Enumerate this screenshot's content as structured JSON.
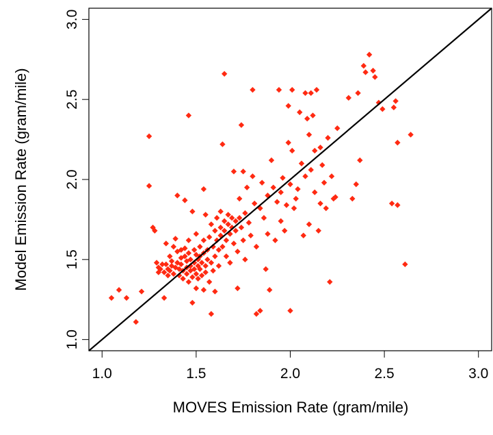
{
  "chart_data": {
    "type": "scatter",
    "title": "",
    "xlabel": "MOVES Emission Rate (gram/mile)",
    "ylabel": "Model Emission Rate (gram/mile)",
    "xlim": [
      0.93,
      3.07
    ],
    "ylim": [
      0.93,
      3.07
    ],
    "x_ticks": [
      "1.0",
      "1.5",
      "2.0",
      "2.5",
      "3.0"
    ],
    "y_ticks": [
      "1.0",
      "1.5",
      "2.0",
      "2.5",
      "3.0"
    ],
    "grid": false,
    "legend": "none",
    "reference_line": {
      "label": "",
      "slope": 1,
      "intercept": 0,
      "color": "#000000"
    },
    "marker": {
      "shape": "diamond",
      "color": "#ff2a12"
    },
    "points": [
      [
        1.05,
        1.26
      ],
      [
        1.09,
        1.31
      ],
      [
        1.13,
        1.26
      ],
      [
        1.18,
        1.11
      ],
      [
        1.21,
        1.3
      ],
      [
        1.25,
        2.27
      ],
      [
        1.25,
        1.96
      ],
      [
        1.27,
        1.7
      ],
      [
        1.28,
        1.68
      ],
      [
        1.29,
        1.48
      ],
      [
        1.3,
        1.45
      ],
      [
        1.3,
        1.42
      ],
      [
        1.31,
        1.44
      ],
      [
        1.32,
        1.47
      ],
      [
        1.33,
        1.26
      ],
      [
        1.33,
        1.42
      ],
      [
        1.34,
        1.6
      ],
      [
        1.34,
        1.47
      ],
      [
        1.35,
        1.44
      ],
      [
        1.35,
        1.4
      ],
      [
        1.36,
        1.52
      ],
      [
        1.36,
        1.43
      ],
      [
        1.37,
        1.49
      ],
      [
        1.37,
        1.46
      ],
      [
        1.38,
        1.41
      ],
      [
        1.38,
        1.58
      ],
      [
        1.39,
        1.63
      ],
      [
        1.39,
        1.45
      ],
      [
        1.4,
        1.9
      ],
      [
        1.4,
        1.55
      ],
      [
        1.4,
        1.48
      ],
      [
        1.41,
        1.44
      ],
      [
        1.41,
        1.4
      ],
      [
        1.42,
        1.56
      ],
      [
        1.42,
        1.51
      ],
      [
        1.42,
        1.47
      ],
      [
        1.43,
        1.43
      ],
      [
        1.43,
        1.38
      ],
      [
        1.44,
        1.87
      ],
      [
        1.44,
        1.57
      ],
      [
        1.44,
        1.52
      ],
      [
        1.45,
        1.49
      ],
      [
        1.45,
        1.45
      ],
      [
        1.45,
        1.41
      ],
      [
        1.46,
        2.4
      ],
      [
        1.46,
        1.62
      ],
      [
        1.46,
        1.54
      ],
      [
        1.46,
        1.36
      ],
      [
        1.47,
        1.5
      ],
      [
        1.47,
        1.46
      ],
      [
        1.47,
        1.43
      ],
      [
        1.48,
        1.23
      ],
      [
        1.48,
        1.39
      ],
      [
        1.48,
        1.8
      ],
      [
        1.49,
        1.56
      ],
      [
        1.49,
        1.48
      ],
      [
        1.49,
        1.44
      ],
      [
        1.5,
        1.66
      ],
      [
        1.5,
        1.53
      ],
      [
        1.5,
        1.41
      ],
      [
        1.5,
        1.32
      ],
      [
        1.51,
        1.5
      ],
      [
        1.51,
        1.46
      ],
      [
        1.51,
        1.38
      ],
      [
        1.52,
        1.58
      ],
      [
        1.52,
        1.52
      ],
      [
        1.52,
        1.44
      ],
      [
        1.53,
        1.48
      ],
      [
        1.53,
        1.4
      ],
      [
        1.54,
        1.94
      ],
      [
        1.54,
        1.62
      ],
      [
        1.54,
        1.54
      ],
      [
        1.54,
        1.31
      ],
      [
        1.55,
        1.78
      ],
      [
        1.55,
        1.46
      ],
      [
        1.55,
        1.42
      ],
      [
        1.56,
        1.56
      ],
      [
        1.56,
        1.5
      ],
      [
        1.57,
        1.64
      ],
      [
        1.57,
        1.36
      ],
      [
        1.58,
        1.16
      ],
      [
        1.58,
        1.72
      ],
      [
        1.58,
        1.48
      ],
      [
        1.59,
        1.58
      ],
      [
        1.59,
        1.43
      ],
      [
        1.6,
        1.68
      ],
      [
        1.6,
        1.52
      ],
      [
        1.6,
        1.3
      ],
      [
        1.61,
        1.76
      ],
      [
        1.61,
        1.62
      ],
      [
        1.62,
        1.56
      ],
      [
        1.62,
        1.46
      ],
      [
        1.63,
        1.8
      ],
      [
        1.63,
        1.7
      ],
      [
        1.63,
        1.65
      ],
      [
        1.64,
        2.22
      ],
      [
        1.64,
        1.58
      ],
      [
        1.65,
        2.66
      ],
      [
        1.65,
        1.74
      ],
      [
        1.65,
        1.68
      ],
      [
        1.66,
        1.62
      ],
      [
        1.66,
        1.52
      ],
      [
        1.67,
        1.78
      ],
      [
        1.67,
        1.72
      ],
      [
        1.68,
        1.66
      ],
      [
        1.68,
        1.48
      ],
      [
        1.69,
        1.76
      ],
      [
        1.69,
        1.7
      ],
      [
        1.7,
        2.05
      ],
      [
        1.7,
        1.6
      ],
      [
        1.71,
        1.74
      ],
      [
        1.71,
        1.68
      ],
      [
        1.72,
        1.32
      ],
      [
        1.72,
        1.55
      ],
      [
        1.73,
        1.88
      ],
      [
        1.73,
        1.76
      ],
      [
        1.74,
        2.34
      ],
      [
        1.74,
        1.7
      ],
      [
        1.75,
        1.62
      ],
      [
        1.75,
        2.05
      ],
      [
        1.76,
        1.5
      ],
      [
        1.76,
        1.79
      ],
      [
        1.77,
        1.95
      ],
      [
        1.78,
        1.73
      ],
      [
        1.79,
        1.65
      ],
      [
        1.8,
        2.56
      ],
      [
        1.8,
        2.02
      ],
      [
        1.81,
        1.85
      ],
      [
        1.82,
        1.58
      ],
      [
        1.82,
        1.16
      ],
      [
        1.84,
        1.82
      ],
      [
        1.84,
        1.18
      ],
      [
        1.85,
        1.98
      ],
      [
        1.86,
        1.76
      ],
      [
        1.87,
        1.44
      ],
      [
        1.88,
        1.9
      ],
      [
        1.88,
        1.66
      ],
      [
        1.89,
        1.31
      ],
      [
        1.9,
        2.12
      ],
      [
        1.91,
        1.95
      ],
      [
        1.92,
        1.62
      ],
      [
        1.93,
        1.86
      ],
      [
        1.94,
        2.56
      ],
      [
        1.95,
        1.92
      ],
      [
        1.95,
        1.74
      ],
      [
        1.96,
        2.01
      ],
      [
        1.97,
        1.68
      ],
      [
        1.98,
        1.84
      ],
      [
        1.99,
        2.46
      ],
      [
        1.99,
        2.23
      ],
      [
        2.0,
        1.97
      ],
      [
        2.0,
        1.18
      ],
      [
        2.01,
        2.56
      ],
      [
        2.01,
        2.18
      ],
      [
        2.02,
        1.82
      ],
      [
        2.03,
        1.88
      ],
      [
        2.04,
        1.94
      ],
      [
        2.05,
        2.42
      ],
      [
        2.06,
        2.1
      ],
      [
        2.07,
        1.65
      ],
      [
        2.08,
        2.54
      ],
      [
        2.08,
        2.02
      ],
      [
        2.09,
        2.38
      ],
      [
        2.1,
        2.28
      ],
      [
        2.1,
        1.72
      ],
      [
        2.11,
        2.54
      ],
      [
        2.11,
        2.06
      ],
      [
        2.12,
        2.4
      ],
      [
        2.13,
        2.18
      ],
      [
        2.13,
        1.92
      ],
      [
        2.14,
        2.56
      ],
      [
        2.15,
        1.68
      ],
      [
        2.16,
        2.2
      ],
      [
        2.16,
        1.85
      ],
      [
        2.17,
        2.09
      ],
      [
        2.18,
        1.98
      ],
      [
        2.19,
        1.82
      ],
      [
        2.2,
        2.26
      ],
      [
        2.21,
        1.36
      ],
      [
        2.22,
        2.02
      ],
      [
        2.23,
        1.88
      ],
      [
        2.24,
        1.89
      ],
      [
        2.25,
        2.32
      ],
      [
        2.31,
        2.51
      ],
      [
        2.33,
        1.88
      ],
      [
        2.35,
        1.97
      ],
      [
        2.36,
        2.54
      ],
      [
        2.37,
        2.12
      ],
      [
        2.39,
        2.71
      ],
      [
        2.4,
        2.67
      ],
      [
        2.42,
        2.78
      ],
      [
        2.44,
        2.68
      ],
      [
        2.45,
        2.64
      ],
      [
        2.47,
        2.48
      ],
      [
        2.49,
        2.44
      ],
      [
        2.54,
        1.85
      ],
      [
        2.55,
        2.45
      ],
      [
        2.56,
        2.49
      ],
      [
        2.57,
        1.84
      ],
      [
        2.57,
        2.23
      ],
      [
        2.61,
        1.47
      ],
      [
        2.64,
        2.28
      ]
    ]
  }
}
